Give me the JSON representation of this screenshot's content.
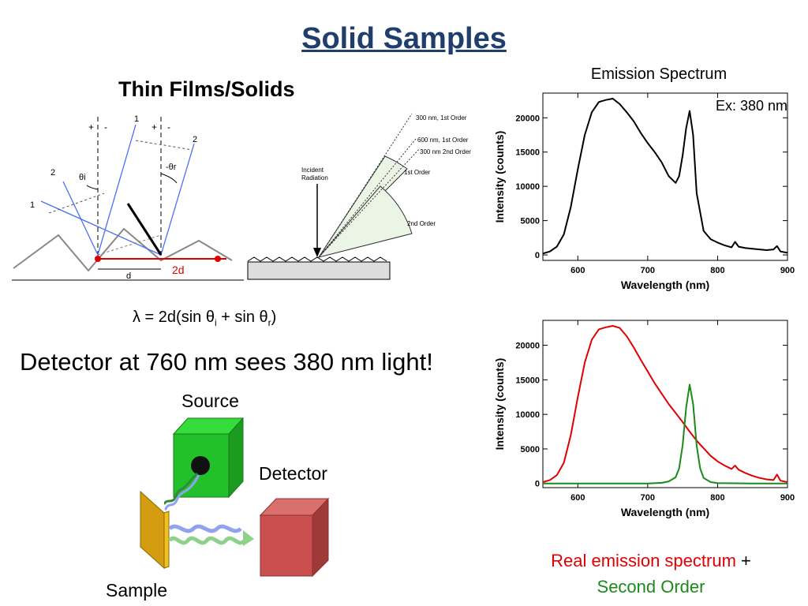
{
  "slide": {
    "title": "Solid Samples",
    "subtitle": "Thin Films/Solids",
    "formula": {
      "a": "λ = 2d(sin θ",
      "b": "i",
      "c": " + sin θ",
      "d": "r",
      "e": ")"
    },
    "detector_statement": "Detector at 760 nm sees 380 nm light!"
  },
  "reflection_diagram": {
    "labels": {
      "plus": "+",
      "minus": "-",
      "ray1": "1",
      "ray2": "2",
      "theta_i": "θi",
      "theta_r": "-θr",
      "d": "d",
      "two_d": "2d"
    }
  },
  "grating_diagram": {
    "labels": {
      "first_order_300": "300 nm, 1st Order",
      "first_order_600": "600 nm, 1st Order",
      "second_order_300": "300 nm 2nd Order",
      "first_order": "1st Order",
      "second_order": "2nd Order",
      "incident": "Incident",
      "radiation": "Radiation"
    }
  },
  "setup_diagram": {
    "source": "Source",
    "detector": "Detector",
    "sample": "Sample",
    "colors": {
      "source": "#22c02a",
      "detector": "#c9504e",
      "sample": "#d49c10",
      "wave_blue": "#8fa3f0",
      "wave_green": "#8fd08a"
    }
  },
  "captions": {
    "real": "Real emission spectrum",
    "plus": " +",
    "second": "Second Order",
    "real_color": "#e00000",
    "second_color": "#1a8a1a"
  },
  "chart_data": [
    {
      "type": "line",
      "title": "Emission Spectrum",
      "annotation": "Ex: 380 nm",
      "xlabel": "Wavelength (nm)",
      "ylabel": "Intensity (counts)",
      "xlim": [
        550,
        900
      ],
      "ylim": [
        -800,
        23600
      ],
      "xticks": [
        600,
        700,
        800,
        900
      ],
      "yticks": [
        0,
        5000,
        10000,
        15000,
        20000
      ],
      "series": [
        {
          "color": "#000000",
          "x": [
            550,
            560,
            570,
            580,
            590,
            600,
            610,
            620,
            630,
            640,
            650,
            660,
            670,
            680,
            690,
            700,
            710,
            720,
            730,
            740,
            745,
            750,
            755,
            760,
            765,
            770,
            780,
            790,
            800,
            810,
            820,
            825,
            830,
            840,
            850,
            860,
            870,
            880,
            885,
            890,
            900
          ],
          "y": [
            200,
            500,
            1200,
            3000,
            7000,
            12500,
            17500,
            20800,
            22300,
            22600,
            22800,
            22000,
            20800,
            19500,
            17800,
            16300,
            15000,
            13500,
            11500,
            10500,
            11500,
            14500,
            18500,
            21000,
            17500,
            9000,
            3500,
            2300,
            1800,
            1400,
            1100,
            1900,
            1200,
            1000,
            900,
            800,
            700,
            800,
            1300,
            500,
            300
          ]
        }
      ]
    },
    {
      "type": "line",
      "xlabel": "Wavelength (nm)",
      "ylabel": "Intensity (counts)",
      "xlim": [
        550,
        900
      ],
      "ylim": [
        -600,
        23600
      ],
      "xticks": [
        600,
        700,
        800,
        900
      ],
      "yticks": [
        0,
        5000,
        10000,
        15000,
        20000
      ],
      "series": [
        {
          "color": "#e00000",
          "x": [
            550,
            560,
            570,
            580,
            590,
            600,
            610,
            620,
            630,
            640,
            650,
            660,
            670,
            680,
            690,
            700,
            710,
            720,
            730,
            740,
            750,
            760,
            770,
            780,
            790,
            800,
            810,
            820,
            825,
            830,
            840,
            850,
            860,
            870,
            880,
            885,
            890,
            900
          ],
          "y": [
            200,
            500,
            1200,
            3000,
            7000,
            12500,
            17500,
            20800,
            22300,
            22600,
            22800,
            22500,
            21300,
            19700,
            17900,
            16200,
            14500,
            13000,
            11500,
            10200,
            8900,
            7500,
            6200,
            5100,
            4000,
            3200,
            2600,
            2100,
            2600,
            2000,
            1500,
            1100,
            800,
            600,
            500,
            1300,
            400,
            200
          ]
        },
        {
          "color": "#1a8a1a",
          "x": [
            550,
            600,
            700,
            720,
            730,
            740,
            745,
            750,
            755,
            760,
            765,
            770,
            775,
            780,
            790,
            800,
            850,
            900
          ],
          "y": [
            0,
            0,
            0,
            100,
            300,
            900,
            2200,
            5500,
            11000,
            14300,
            11500,
            5500,
            2200,
            800,
            200,
            50,
            0,
            0
          ]
        }
      ]
    }
  ]
}
